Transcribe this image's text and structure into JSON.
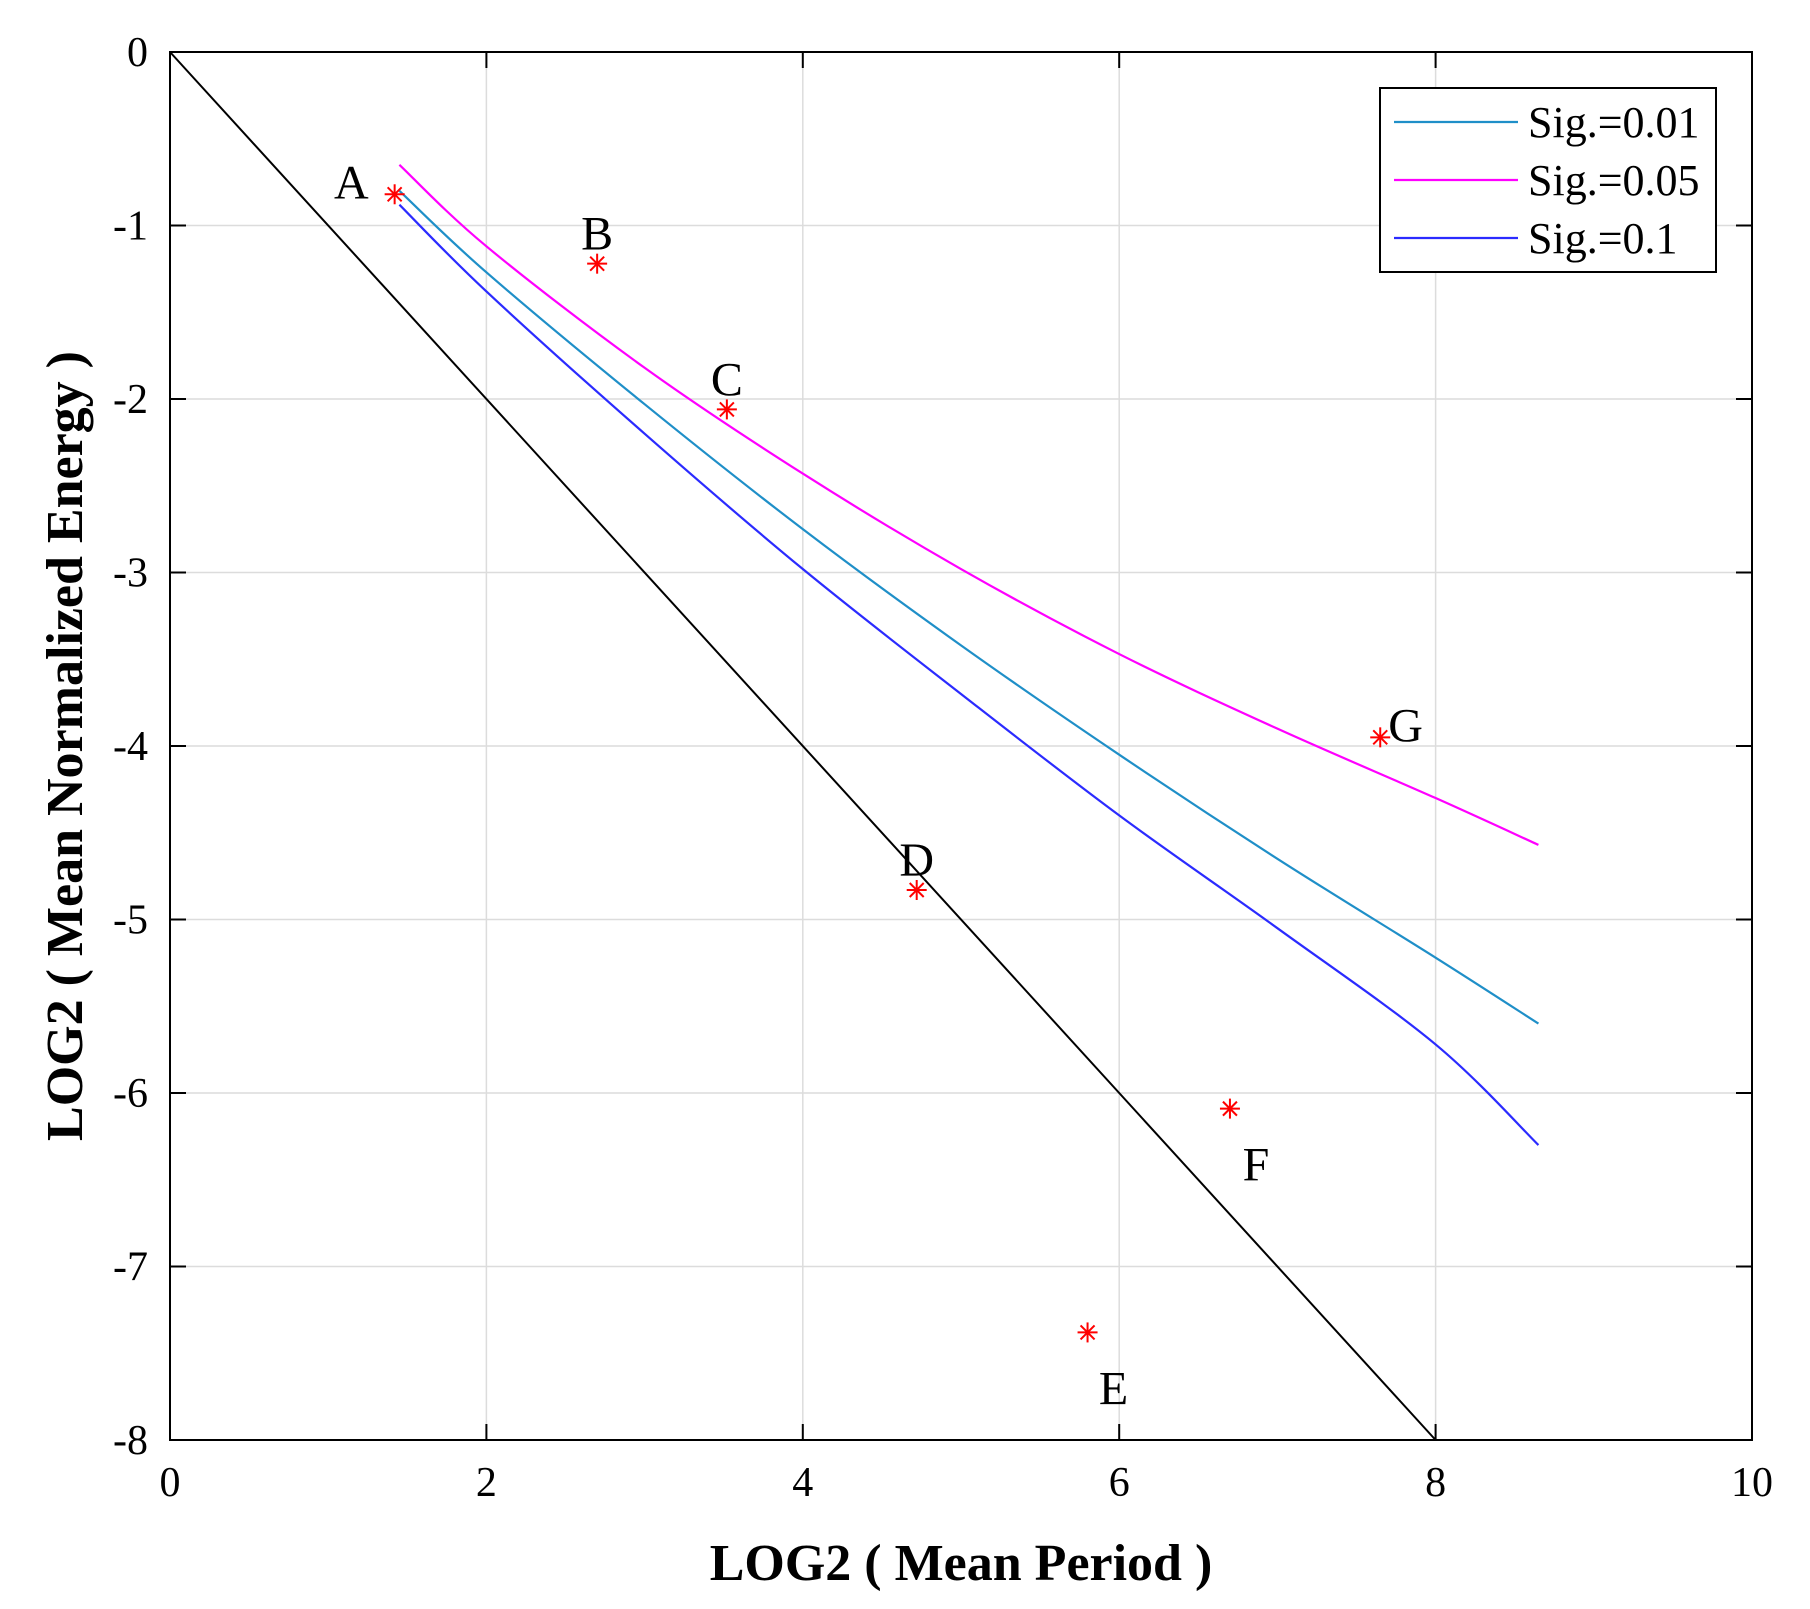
{
  "chart_data": {
    "type": "line",
    "title": "",
    "xlabel": "LOG2 ( Mean Period )",
    "ylabel": "LOG2 ( Mean Normalized Energy )",
    "xlim": [
      0,
      10
    ],
    "ylim": [
      -8,
      0
    ],
    "x_ticks": [
      0,
      2,
      4,
      6,
      8,
      10
    ],
    "y_ticks": [
      0,
      -1,
      -2,
      -3,
      -4,
      -5,
      -6,
      -7,
      -8
    ],
    "grid": true,
    "legend_position": "top-right",
    "series": [
      {
        "name": "Sig.=0.01",
        "color": "#1f8fc8",
        "x": [
          1.45,
          2,
          3,
          4,
          5,
          6,
          7,
          8,
          8.65
        ],
        "y": [
          -0.8,
          -1.27,
          -2.03,
          -2.75,
          -3.42,
          -4.05,
          -4.65,
          -5.22,
          -5.6
        ]
      },
      {
        "name": "Sig.=0.05",
        "color": "#ff00ff",
        "x": [
          1.45,
          2,
          3,
          4,
          5,
          6,
          7,
          8,
          8.65
        ],
        "y": [
          -0.65,
          -1.12,
          -1.82,
          -2.43,
          -2.98,
          -3.47,
          -3.9,
          -4.3,
          -4.57
        ]
      },
      {
        "name": "Sig.=0.1",
        "color": "#2b2bff",
        "x": [
          1.45,
          2,
          3,
          4,
          5,
          6,
          7,
          8,
          8.65
        ],
        "y": [
          -0.88,
          -1.38,
          -2.2,
          -2.98,
          -3.7,
          -4.4,
          -5.05,
          -5.72,
          -6.3
        ]
      }
    ],
    "reference_line": {
      "name": "y = -x",
      "color": "#000000",
      "x": [
        0,
        8
      ],
      "y": [
        0,
        -8
      ]
    },
    "points": [
      {
        "label": "A",
        "x": 1.42,
        "y": -0.82,
        "label_pos": "left"
      },
      {
        "label": "B",
        "x": 2.7,
        "y": -1.22,
        "label_pos": "above"
      },
      {
        "label": "C",
        "x": 3.52,
        "y": -2.06,
        "label_pos": "above"
      },
      {
        "label": "D",
        "x": 4.72,
        "y": -4.83,
        "label_pos": "above"
      },
      {
        "label": "E",
        "x": 5.8,
        "y": -7.38,
        "label_pos": "below"
      },
      {
        "label": "F",
        "x": 6.7,
        "y": -6.09,
        "label_pos": "below"
      },
      {
        "label": "G",
        "x": 7.65,
        "y": -3.95,
        "label_pos": "right"
      }
    ],
    "point_color": "#ff0000"
  }
}
